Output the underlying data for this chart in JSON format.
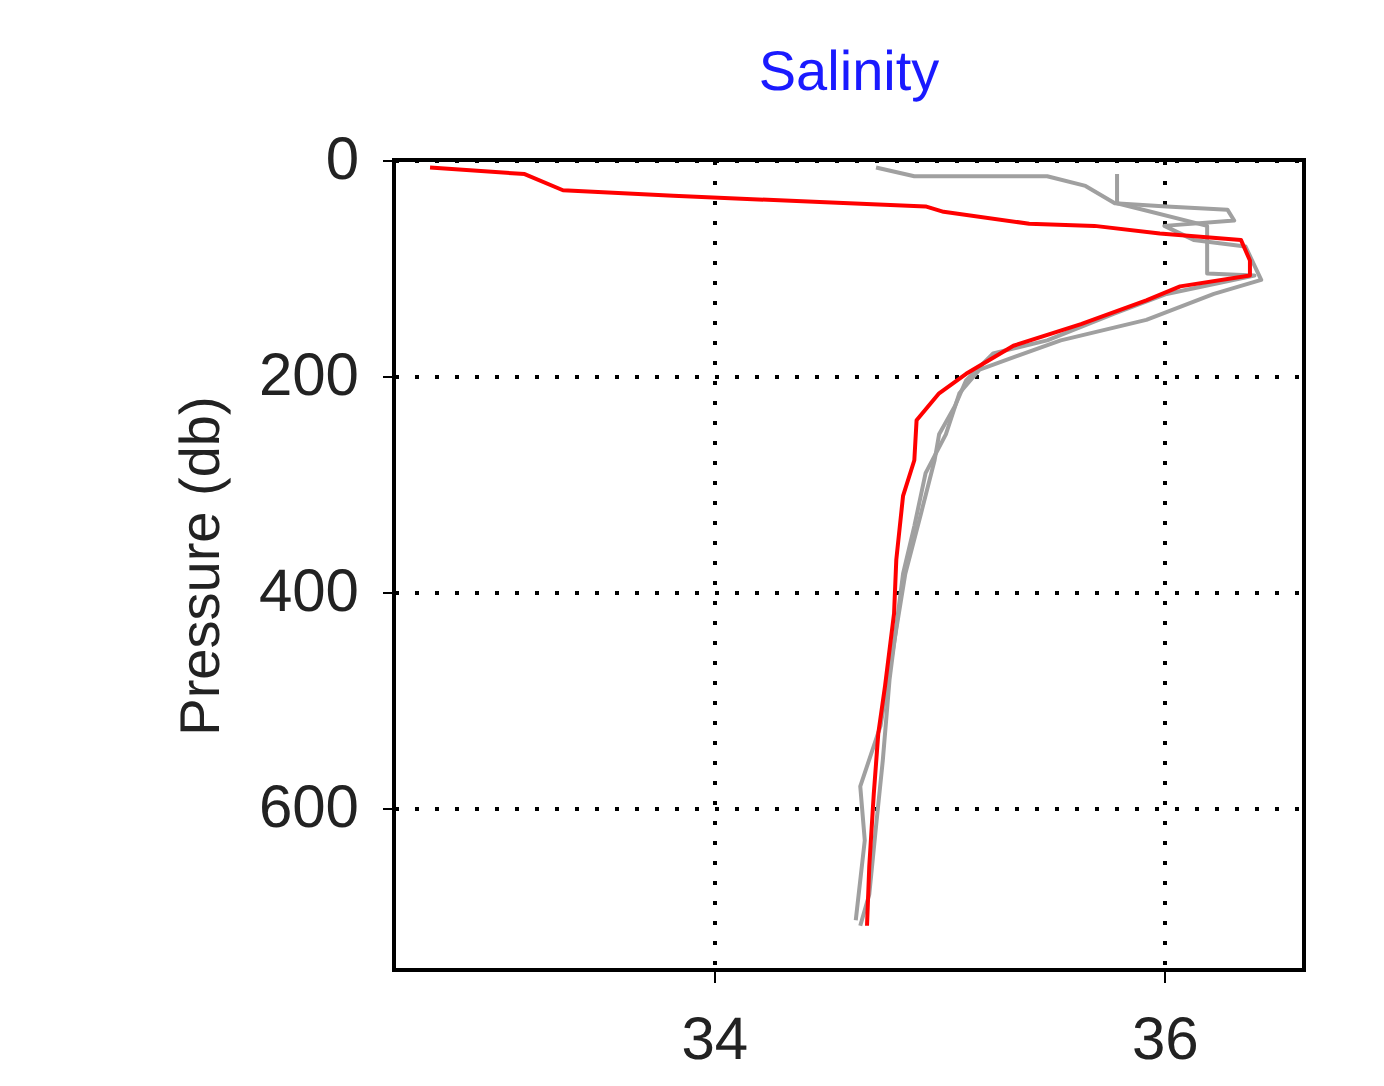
{
  "chart_data": {
    "type": "line",
    "title": "Salinity",
    "ylabel": "Pressure (db)",
    "xlim": [
      32.58,
      36.62
    ],
    "xticks": [
      34,
      36
    ],
    "ylim": [
      750,
      0
    ],
    "yticks": [
      0,
      200,
      400,
      600
    ],
    "grid": true,
    "line_style": "solid",
    "series": [
      {
        "color": "#a0a0a0",
        "x": [
          34.72,
          34.89,
          35.48,
          35.65,
          35.78,
          36.01,
          36.28,
          36.31,
          36.0,
          36.13,
          36.36,
          36.43,
          36.22,
          35.92,
          35.54,
          35.18,
          35.09,
          35.03,
          34.94,
          34.89,
          34.84,
          34.78,
          34.75,
          34.72,
          34.69,
          34.65
        ],
        "values": [
          7,
          15,
          15,
          24,
          40,
          43,
          46,
          56,
          61,
          74,
          80,
          111,
          124,
          148,
          167,
          194,
          216,
          254,
          290,
          339,
          383,
          481,
          556,
          617,
          680,
          709
        ]
      },
      {
        "color": "#a0a0a0",
        "x": [
          35.79,
          35.79,
          36.19,
          36.19,
          36.4,
          36.01,
          35.78,
          35.48,
          35.24,
          35.12,
          35.07,
          35.0,
          34.98,
          34.92,
          34.85,
          34.74,
          34.65,
          34.67,
          34.63
        ],
        "values": [
          13,
          40,
          61,
          105,
          107,
          124,
          142,
          167,
          179,
          204,
          228,
          254,
          278,
          327,
          383,
          524,
          580,
          630,
          704
        ]
      },
      {
        "color": "#ff0000",
        "x": [
          32.74,
          33.16,
          33.33,
          33.82,
          34.47,
          34.94,
          35.02,
          35.4,
          35.69,
          35.98,
          36.34,
          36.38,
          36.38,
          36.07,
          35.92,
          35.63,
          35.33,
          35.12,
          35.0,
          34.9,
          34.89,
          34.84,
          34.81,
          34.8,
          34.76,
          34.73,
          34.71,
          34.69,
          34.68
        ],
        "values": [
          7,
          13,
          28,
          33,
          39,
          43,
          48,
          59,
          61,
          68,
          74,
          93,
          107,
          117,
          130,
          152,
          172,
          198,
          216,
          241,
          278,
          311,
          370,
          420,
          487,
          531,
          587,
          654,
          709
        ]
      }
    ]
  }
}
